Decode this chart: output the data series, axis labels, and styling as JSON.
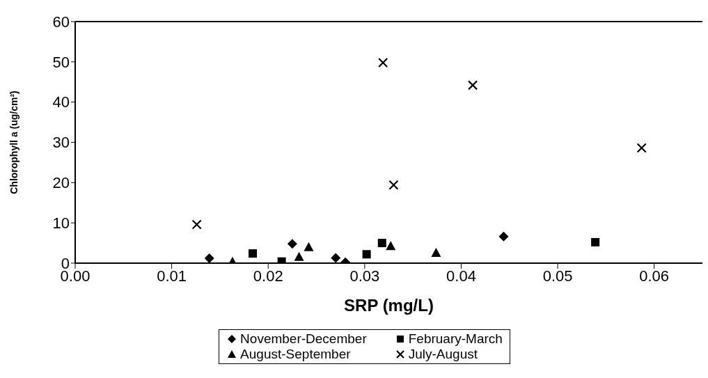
{
  "chart_data": {
    "type": "scatter",
    "xlabel": "SRP (mg/L)",
    "ylabel": "Chlorophyll a (ug/cm²)",
    "xlim": [
      0,
      0.065
    ],
    "xticks": [
      {
        "value": 0,
        "label": "0.00"
      },
      {
        "value": 0.01,
        "label": "0.01"
      },
      {
        "value": 0.02,
        "label": "0.02"
      },
      {
        "value": 0.03,
        "label": "0.03"
      },
      {
        "value": 0.04,
        "label": "0.04"
      },
      {
        "value": 0.05,
        "label": "0.05"
      },
      {
        "value": 0.06,
        "label": "0.06"
      }
    ],
    "ylim": [
      0,
      60
    ],
    "yticks": [
      0,
      10,
      20,
      30,
      40,
      50,
      60
    ],
    "grid": false,
    "legend": "bottom",
    "series": [
      {
        "name": "November-December",
        "color": "#000000",
        "marker": "diamond",
        "x": [
          0.0139,
          0.0225,
          0.027,
          0.028,
          0.0444
        ],
        "values": [
          1.2,
          4.8,
          1.3,
          0.2,
          6.6
        ]
      },
      {
        "name": "February-March",
        "color": "#000000",
        "marker": "square",
        "x": [
          0.0184,
          0.0214,
          0.0302,
          0.0318,
          0.0539
        ],
        "values": [
          2.4,
          0.4,
          2.2,
          5,
          5.2
        ]
      },
      {
        "name": "August-September",
        "color": "#000000",
        "marker": "triangle",
        "x": [
          0.0163,
          0.0232,
          0.0242,
          0.0327,
          0.0374
        ],
        "values": [
          0.4,
          1.6,
          4,
          4.3,
          2.6
        ]
      },
      {
        "name": "July-August",
        "color": "#000000",
        "marker": "cross",
        "x": [
          0.0126,
          0.0319,
          0.0412,
          0.033,
          0.0587
        ],
        "values": [
          9.6,
          49.8,
          44.2,
          19.4,
          28.6
        ]
      }
    ]
  }
}
